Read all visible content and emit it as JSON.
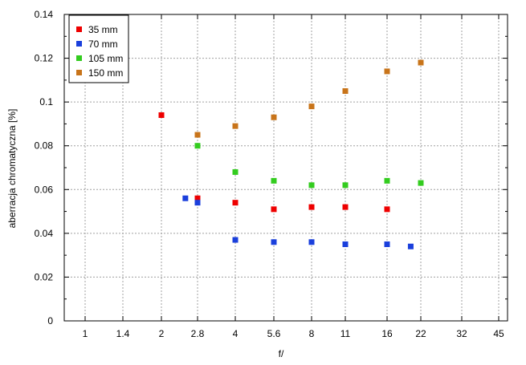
{
  "chart_data": {
    "type": "scatter",
    "xlabel": "f/",
    "ylabel": "aberracja chromatyczna [%]",
    "x_scale": "log",
    "x_ticks": [
      "1",
      "1.4",
      "2",
      "2.8",
      "4",
      "5.6",
      "8",
      "11",
      "16",
      "22",
      "32",
      "45"
    ],
    "x_tick_values": [
      1,
      1.4,
      2,
      2.8,
      4,
      5.6,
      8,
      11,
      16,
      22,
      32,
      45
    ],
    "xlim": [
      0.8,
      50
    ],
    "ylim": [
      0,
      0.14
    ],
    "y_ticks": [
      "0",
      "0.02",
      "0.04",
      "0.06",
      "0.08",
      "0.1",
      "0.12",
      "0.14"
    ],
    "y_tick_values": [
      0,
      0.02,
      0.04,
      0.06,
      0.08,
      0.1,
      0.12,
      0.14
    ],
    "grid": true,
    "legend_position": "top-left",
    "series": [
      {
        "name": "35 mm",
        "color": "#ee0000",
        "x": [
          2,
          2.8,
          4,
          5.6,
          8,
          11,
          16
        ],
        "y": [
          0.094,
          0.056,
          0.054,
          0.051,
          0.052,
          0.052,
          0.051
        ]
      },
      {
        "name": "70 mm",
        "color": "#1a3fdc",
        "x": [
          2.5,
          2.8,
          4,
          5.6,
          8,
          11,
          16,
          20
        ],
        "y": [
          0.056,
          0.054,
          0.037,
          0.036,
          0.036,
          0.035,
          0.035,
          0.034
        ]
      },
      {
        "name": "105 mm",
        "color": "#33cc1f",
        "x": [
          2.8,
          4,
          5.6,
          8,
          11,
          16,
          22
        ],
        "y": [
          0.08,
          0.068,
          0.064,
          0.062,
          0.062,
          0.064,
          0.063
        ]
      },
      {
        "name": "150 mm",
        "color": "#c8741a",
        "x": [
          2.8,
          4,
          5.6,
          8,
          11,
          16,
          22
        ],
        "y": [
          0.085,
          0.089,
          0.093,
          0.098,
          0.105,
          0.114,
          0.118
        ]
      }
    ]
  }
}
